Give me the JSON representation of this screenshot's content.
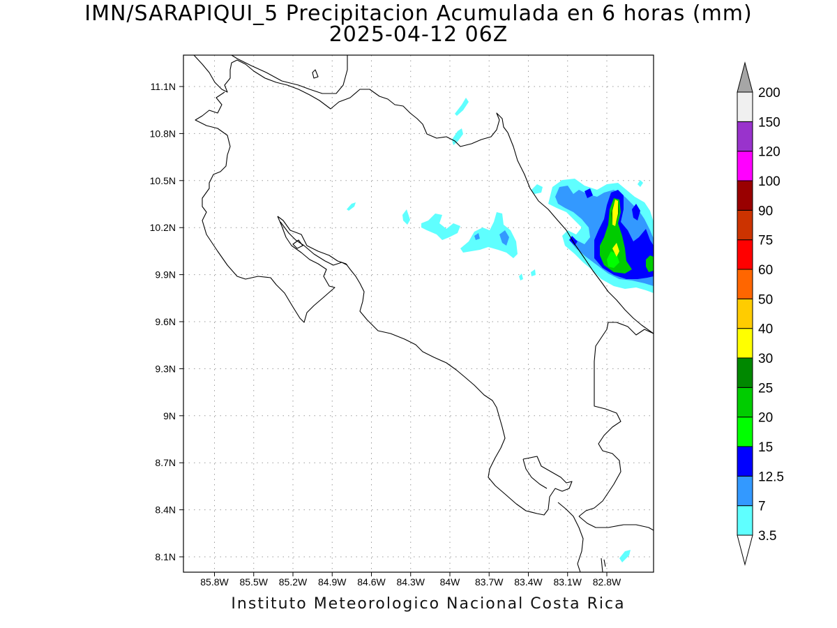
{
  "title": {
    "line1": "IMN/SARAPIQUI_5 Precipitacion Acumulada en 6 horas (mm)",
    "line2": "2025-04-12 06Z"
  },
  "footer": "Instituto Meteorologico Nacional Costa Rica",
  "map": {
    "lon_ticks": [
      "85.8W",
      "85.5W",
      "85.2W",
      "84.9W",
      "84.6W",
      "84.3W",
      "84W",
      "83.7W",
      "83.4W",
      "83.1W",
      "82.8W"
    ],
    "lat_ticks": [
      "11.1N",
      "10.8N",
      "10.5N",
      "10.2N",
      "9.9N",
      "9.6N",
      "9.3N",
      "9N",
      "8.7N",
      "8.4N",
      "8.1N"
    ],
    "grid": "dotted"
  },
  "colorbar": {
    "labels": [
      "3.5",
      "7",
      "12.5",
      "15",
      "20",
      "25",
      "30",
      "40",
      "50",
      "60",
      "75",
      "90",
      "100",
      "120",
      "150",
      "200"
    ],
    "colors": [
      "#ffffff",
      "#5fffff",
      "#3399ff",
      "#0000ff",
      "#00ff00",
      "#00cc00",
      "#008800",
      "#ffff00",
      "#ffcc00",
      "#ff6600",
      "#ff0000",
      "#cc3300",
      "#990000",
      "#ff00ff",
      "#9933cc",
      "#f0f0f0",
      "#a6a6a6"
    ]
  }
}
